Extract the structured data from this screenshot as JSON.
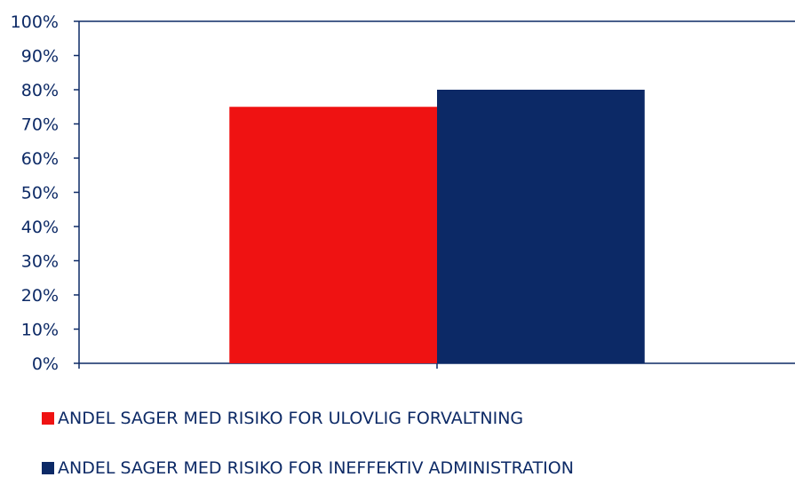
{
  "chart_data": {
    "type": "bar",
    "categories": [
      ""
    ],
    "series": [
      {
        "name": "ANDEL SAGER MED RISIKO FOR ULOVLIG FORVALTNING",
        "values": [
          75
        ],
        "color": "#ef1212"
      },
      {
        "name": "ANDEL SAGER MED RISIKO FOR INEFFEKTIV ADMINISTRATION",
        "values": [
          80
        ],
        "color": "#0c2966"
      }
    ],
    "ylim": [
      0,
      100
    ],
    "yticks": [
      "0%",
      "10%",
      "20%",
      "30%",
      "40%",
      "50%",
      "60%",
      "70%",
      "80%",
      "90%",
      "100%"
    ],
    "grid": false,
    "legend_position": "bottom",
    "axis_color": "#0d2a66"
  }
}
